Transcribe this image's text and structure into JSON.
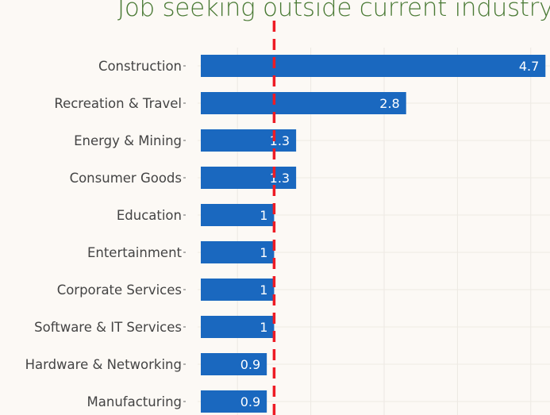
{
  "chart_data": {
    "type": "bar",
    "orientation": "horizontal",
    "title": "Job seeking outside current industry",
    "categories": [
      "Construction",
      "Recreation & Travel",
      "Energy & Mining",
      "Consumer Goods",
      "Education",
      "Entertainment",
      "Corporate Services",
      "Software & IT Services",
      "Hardware & Networking",
      "Manufacturing"
    ],
    "values": [
      4.7,
      2.8,
      1.3,
      1.3,
      1,
      1,
      1,
      1,
      0.9,
      0.9
    ],
    "value_labels": [
      "4.7",
      "2.8",
      "1.3",
      "1.3",
      "1",
      "1",
      "1",
      "1",
      "0.9",
      "0.9"
    ],
    "reference_line": 1.0,
    "xlim": [
      0,
      4.75
    ],
    "grid": true,
    "colors": {
      "bar": "#1a68bf",
      "reference": "#ee1c25",
      "title": "#4a7a35"
    }
  }
}
